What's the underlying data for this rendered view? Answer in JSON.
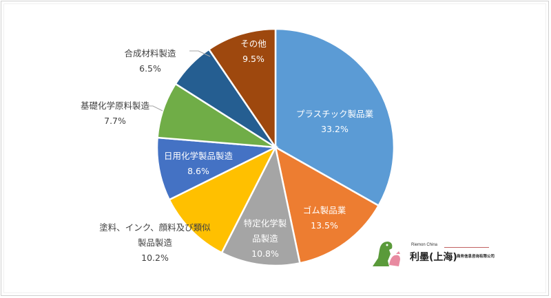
{
  "chart_data": {
    "type": "pie",
    "title": "",
    "start_angle_deg": 0,
    "direction": "clockwise",
    "categories": [
      "プラスチック製品業",
      "ゴム製品業",
      "特定化学製品製造",
      "塗料、インク、顔料及び類似製品製造",
      "日用化学製品製造",
      "基礎化学原料製造",
      "合成材料製造",
      "その他"
    ],
    "values": [
      33.2,
      13.5,
      10.8,
      10.2,
      8.6,
      7.7,
      6.5,
      9.5
    ],
    "colors": [
      "#5B9BD5",
      "#ED7D31",
      "#A5A5A5",
      "#FFC000",
      "#4472C4",
      "#70AD47",
      "#255E91",
      "#9E480E"
    ],
    "label_format": "category + percent",
    "legend": "none"
  },
  "labels": [
    {
      "line1": "プラスチック製品業",
      "line2": "33.2%"
    },
    {
      "line1": "ゴム製品業",
      "line2": "13.5%"
    },
    {
      "line1": "特定化学製",
      "line2": "品製造",
      "line3": "10.8%"
    },
    {
      "line1": "塗料、インク、顔料及び類似",
      "line2": "製品製造",
      "line3": "10.2%"
    },
    {
      "line1": "日用化学製品製造",
      "line2": "8.6%"
    },
    {
      "line1": "基礎化学原料製造",
      "line2": "7.7%"
    },
    {
      "line1": "合成材料製造",
      "line2": "6.5%"
    },
    {
      "line1": "その他",
      "line2": "9.5%"
    }
  ],
  "logo": {
    "en": "Riemon China",
    "cn": "利墨(上海)",
    "sub": "商务信息咨询有限公司"
  }
}
